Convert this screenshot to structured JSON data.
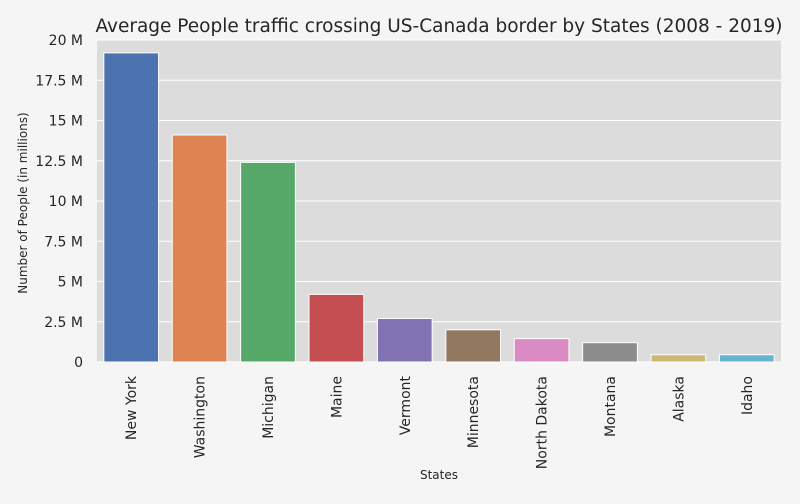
{
  "chart_data": {
    "type": "bar",
    "title": "Average People traffic crossing US-Canada border by States (2008 - 2019)",
    "xlabel": "States",
    "ylabel": "Number of People (in millions)",
    "categories": [
      "New York",
      "Washington",
      "Michigan",
      "Maine",
      "Vermont",
      "Minnesota",
      "North Dakota",
      "Montana",
      "Alaska",
      "Idaho"
    ],
    "values": [
      19.2,
      14.1,
      12.4,
      4.2,
      2.7,
      2.0,
      1.45,
      1.2,
      0.45,
      0.45
    ],
    "ylim": [
      0,
      20
    ],
    "yticks": [
      0,
      2.5,
      5,
      7.5,
      10,
      12.5,
      15,
      17.5,
      20
    ],
    "ytick_labels": [
      "0",
      "2.5 M",
      "5 M",
      "7.5 M",
      "10 M",
      "12.5 M",
      "15 M",
      "17.5 M",
      "20 M"
    ],
    "grid": true,
    "colors": [
      "#4c72b0",
      "#dd8452",
      "#55a868",
      "#c44e52",
      "#8172b3",
      "#937860",
      "#da8bc3",
      "#8c8c8c",
      "#ccb974",
      "#64b5cd"
    ],
    "plot_background": "#dcdcdc",
    "figure_background": "#f5f5f5",
    "text_color": "#262626"
  }
}
